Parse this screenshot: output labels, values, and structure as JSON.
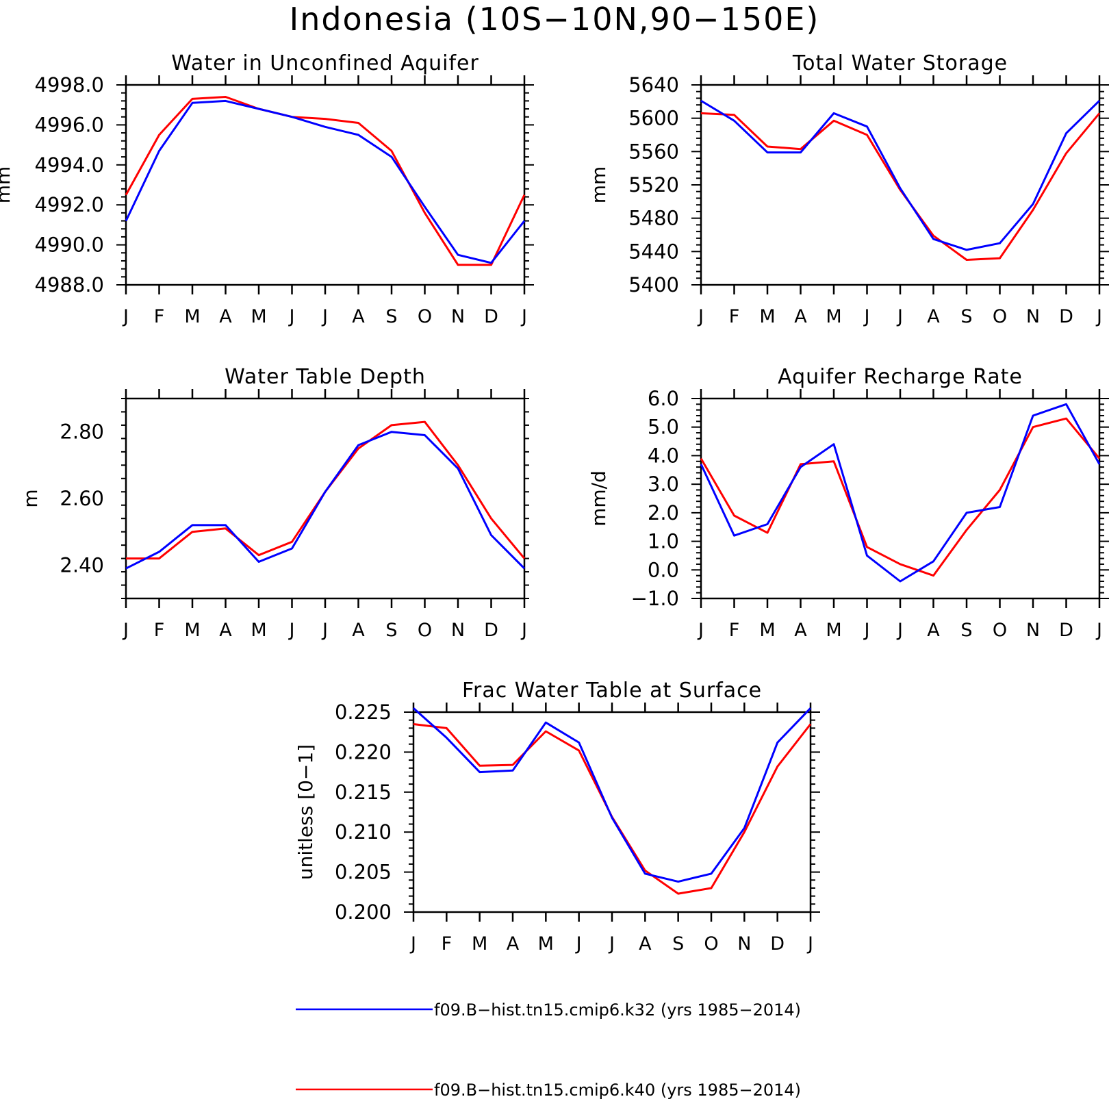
{
  "title": "Indonesia (10S−10N,90−150E)",
  "months": [
    "J",
    "F",
    "M",
    "A",
    "M",
    "J",
    "J",
    "A",
    "S",
    "O",
    "N",
    "D",
    "J"
  ],
  "legend": [
    {
      "label": "f09.B−hist.tn15.cmip6.k32 (yrs 1985−2014)",
      "color": "#0000ff"
    },
    {
      "label": "f09.B−hist.tn15.cmip6.k40 (yrs 1985−2014)",
      "color": "#ff0000"
    }
  ],
  "chart_data": [
    {
      "type": "line",
      "title": "Water in Unconfined Aquifer",
      "ylabel": "mm",
      "ylim": [
        4988.0,
        4998.0
      ],
      "yticks": [
        "4988.0",
        "4990.0",
        "4992.0",
        "4994.0",
        "4996.0",
        "4998.0"
      ],
      "categories": [
        "J",
        "F",
        "M",
        "A",
        "M",
        "J",
        "J",
        "A",
        "S",
        "O",
        "N",
        "D",
        "J"
      ],
      "series": [
        {
          "name": "f09.B−hist.tn15.cmip6.k32 (yrs 1985−2014)",
          "color": "#0000ff",
          "values": [
            4991.2,
            4994.7,
            4997.1,
            4997.2,
            4996.8,
            4996.4,
            4995.9,
            4995.5,
            4994.4,
            4991.9,
            4989.5,
            4989.1,
            4991.2
          ]
        },
        {
          "name": "f09.B−hist.tn15.cmip6.k40 (yrs 1985−2014)",
          "color": "#ff0000",
          "values": [
            4992.5,
            4995.5,
            4997.3,
            4997.4,
            4996.8,
            4996.4,
            4996.3,
            4996.1,
            4994.7,
            4991.6,
            4989.0,
            4989.0,
            4992.5
          ]
        }
      ]
    },
    {
      "type": "line",
      "title": "Total Water Storage",
      "ylabel": "mm",
      "ylim": [
        5400,
        5640
      ],
      "yticks": [
        "5400",
        "5440",
        "5480",
        "5520",
        "5560",
        "5600",
        "5640"
      ],
      "categories": [
        "J",
        "F",
        "M",
        "A",
        "M",
        "J",
        "J",
        "A",
        "S",
        "O",
        "N",
        "D",
        "J"
      ],
      "series": [
        {
          "name": "f09.B−hist.tn15.cmip6.k32 (yrs 1985−2014)",
          "color": "#0000ff",
          "values": [
            5621,
            5597,
            5559,
            5559,
            5606,
            5590,
            5516,
            5455,
            5442,
            5450,
            5497,
            5582,
            5621
          ]
        },
        {
          "name": "f09.B−hist.tn15.cmip6.k40 (yrs 1985−2014)",
          "color": "#ff0000",
          "values": [
            5606,
            5604,
            5566,
            5563,
            5597,
            5580,
            5514,
            5459,
            5430,
            5432,
            5490,
            5558,
            5606
          ]
        }
      ]
    },
    {
      "type": "line",
      "title": "Water Table Depth",
      "ylabel": "m",
      "ylim": [
        2.3,
        2.9
      ],
      "yticks": [
        "2.40",
        "2.60",
        "2.80"
      ],
      "categories": [
        "J",
        "F",
        "M",
        "A",
        "M",
        "J",
        "J",
        "A",
        "S",
        "O",
        "N",
        "D",
        "J"
      ],
      "series": [
        {
          "name": "f09.B−hist.tn15.cmip6.k32 (yrs 1985−2014)",
          "color": "#0000ff",
          "values": [
            2.39,
            2.44,
            2.52,
            2.52,
            2.41,
            2.45,
            2.62,
            2.76,
            2.8,
            2.79,
            2.69,
            2.49,
            2.39
          ]
        },
        {
          "name": "f09.B−hist.tn15.cmip6.k40 (yrs 1985−2014)",
          "color": "#ff0000",
          "values": [
            2.42,
            2.42,
            2.5,
            2.51,
            2.43,
            2.47,
            2.62,
            2.75,
            2.82,
            2.83,
            2.7,
            2.54,
            2.42
          ]
        }
      ]
    },
    {
      "type": "line",
      "title": "Aquifer Recharge Rate",
      "ylabel": "mm/d",
      "ylim": [
        -1.0,
        6.0
      ],
      "yticks": [
        "−1.0",
        "0.0",
        "1.0",
        "2.0",
        "3.0",
        "4.0",
        "5.0",
        "6.0"
      ],
      "categories": [
        "J",
        "F",
        "M",
        "A",
        "M",
        "J",
        "J",
        "A",
        "S",
        "O",
        "N",
        "D",
        "J"
      ],
      "series": [
        {
          "name": "f09.B−hist.tn15.cmip6.k32 (yrs 1985−2014)",
          "color": "#0000ff",
          "values": [
            3.7,
            1.2,
            1.6,
            3.6,
            4.4,
            0.5,
            -0.4,
            0.3,
            2.0,
            2.2,
            5.4,
            5.8,
            3.7
          ]
        },
        {
          "name": "f09.B−hist.tn15.cmip6.k40 (yrs 1985−2014)",
          "color": "#ff0000",
          "values": [
            3.9,
            1.9,
            1.3,
            3.7,
            3.8,
            0.8,
            0.2,
            -0.2,
            1.4,
            2.8,
            5.0,
            5.3,
            3.9
          ]
        }
      ]
    },
    {
      "type": "line",
      "title": "Frac Water Table at Surface",
      "ylabel": "unitless [0−1]",
      "ylim": [
        0.2,
        0.225
      ],
      "yticks": [
        "0.200",
        "0.205",
        "0.210",
        "0.215",
        "0.220",
        "0.225"
      ],
      "categories": [
        "J",
        "F",
        "M",
        "A",
        "M",
        "J",
        "J",
        "A",
        "S",
        "O",
        "N",
        "D",
        "J"
      ],
      "series": [
        {
          "name": "f09.B−hist.tn15.cmip6.k32 (yrs 1985−2014)",
          "color": "#0000ff",
          "values": [
            0.2255,
            0.2218,
            0.2175,
            0.2177,
            0.2237,
            0.2212,
            0.2118,
            0.2048,
            0.2038,
            0.2048,
            0.2105,
            0.2212,
            0.2255
          ]
        },
        {
          "name": "f09.B−hist.tn15.cmip6.k40 (yrs 1985−2014)",
          "color": "#ff0000",
          "values": [
            0.2235,
            0.223,
            0.2183,
            0.2184,
            0.2226,
            0.2202,
            0.2119,
            0.2052,
            0.2023,
            0.203,
            0.21,
            0.2182,
            0.2235
          ]
        }
      ]
    }
  ]
}
